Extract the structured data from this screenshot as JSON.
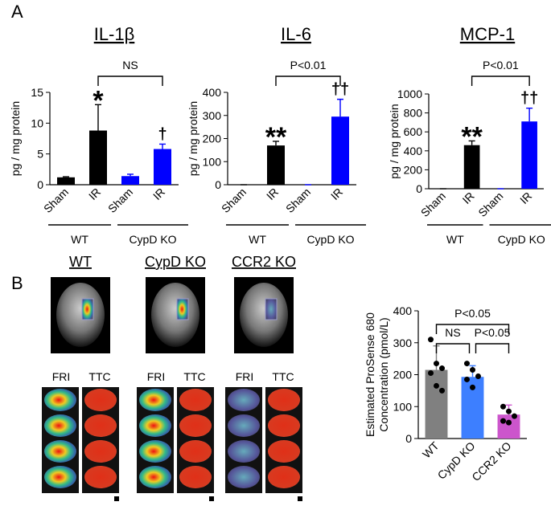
{
  "panels": [
    "A",
    "B"
  ],
  "images": {
    "titles": [
      "WT",
      "CypD KO",
      "CCR2 KO"
    ],
    "labels": [
      [
        "FRI",
        "TTC"
      ],
      [
        "FRI",
        "TTC"
      ],
      [
        "FRI",
        "TTC"
      ]
    ]
  },
  "chart_data": [
    {
      "type": "bar",
      "title": "IL-1β",
      "ylabel": [
        "pg / mg protein"
      ],
      "categories": [
        "Sham",
        "IR",
        "Sham",
        "IR"
      ],
      "values": [
        1.2,
        8.8,
        1.4,
        5.8
      ],
      "errors": [
        0.1,
        4.2,
        0.3,
        0.8
      ],
      "colors": [
        "#000000",
        "#000000",
        "#0000ff",
        "#0000ff"
      ],
      "ylim": [
        0,
        15
      ],
      "yticks": [
        0,
        5,
        10,
        15
      ],
      "marks": [
        null,
        "*",
        null,
        "†"
      ],
      "groups": [
        "WT",
        "CypD KO"
      ],
      "comparisons": [
        {
          "label": "NS",
          "between": [
            1,
            3
          ]
        }
      ]
    },
    {
      "type": "bar",
      "title": "IL-6",
      "ylabel": [
        "pg / mg protein"
      ],
      "categories": [
        "Sham",
        "IR",
        "Sham",
        "IR"
      ],
      "values": [
        0,
        170,
        0,
        295
      ],
      "errors": [
        0,
        18,
        0,
        75
      ],
      "colors": [
        "#000000",
        "#000000",
        "#0000ff",
        "#0000ff"
      ],
      "ylim": [
        0,
        400
      ],
      "yticks": [
        0,
        100,
        200,
        300,
        400
      ],
      "marks": [
        null,
        "**",
        null,
        "††"
      ],
      "groups": [
        "WT",
        "CypD KO"
      ],
      "comparisons": [
        {
          "label": "P<0.01",
          "between": [
            1,
            3
          ]
        }
      ]
    },
    {
      "type": "bar",
      "title": "MCP-1",
      "ylabel": [
        "pg / mg protein"
      ],
      "categories": [
        "Sham",
        "IR",
        "Sham",
        "IR"
      ],
      "values": [
        0,
        460,
        0,
        710
      ],
      "errors": [
        0,
        45,
        0,
        140
      ],
      "colors": [
        "#000000",
        "#000000",
        "#0000ff",
        "#0000ff"
      ],
      "ylim": [
        0,
        1000
      ],
      "yticks": [
        0,
        200,
        400,
        600,
        800,
        1000
      ],
      "marks": [
        null,
        "**",
        null,
        "††"
      ],
      "groups": [
        "WT",
        "CypD KO"
      ],
      "comparisons": [
        {
          "label": "P<0.01",
          "between": [
            1,
            3
          ]
        }
      ]
    },
    {
      "type": "bar",
      "ylabel": [
        "Estimated ProSense 680",
        "Concentration (pmol/L)"
      ],
      "categories": [
        "WT",
        "CypD KO",
        "CCR2 KO"
      ],
      "values": [
        215,
        193,
        75
      ],
      "errors": [
        75,
        35,
        30
      ],
      "colors": [
        "#808080",
        "#3d7fff",
        "#cc55cc"
      ],
      "points": [
        [
          310,
          235,
          220,
          205,
          165,
          150
        ],
        [
          235,
          215,
          195,
          185,
          160
        ],
        [
          100,
          85,
          70,
          55,
          50
        ]
      ],
      "ylim": [
        0,
        400
      ],
      "yticks": [
        0,
        100,
        200,
        300,
        400
      ],
      "comparisons": [
        {
          "label": "NS",
          "between": [
            0,
            1
          ]
        },
        {
          "label": "P<0.05",
          "between": [
            1,
            2
          ]
        },
        {
          "label": "P<0.05",
          "between": [
            0,
            2
          ]
        }
      ]
    }
  ]
}
